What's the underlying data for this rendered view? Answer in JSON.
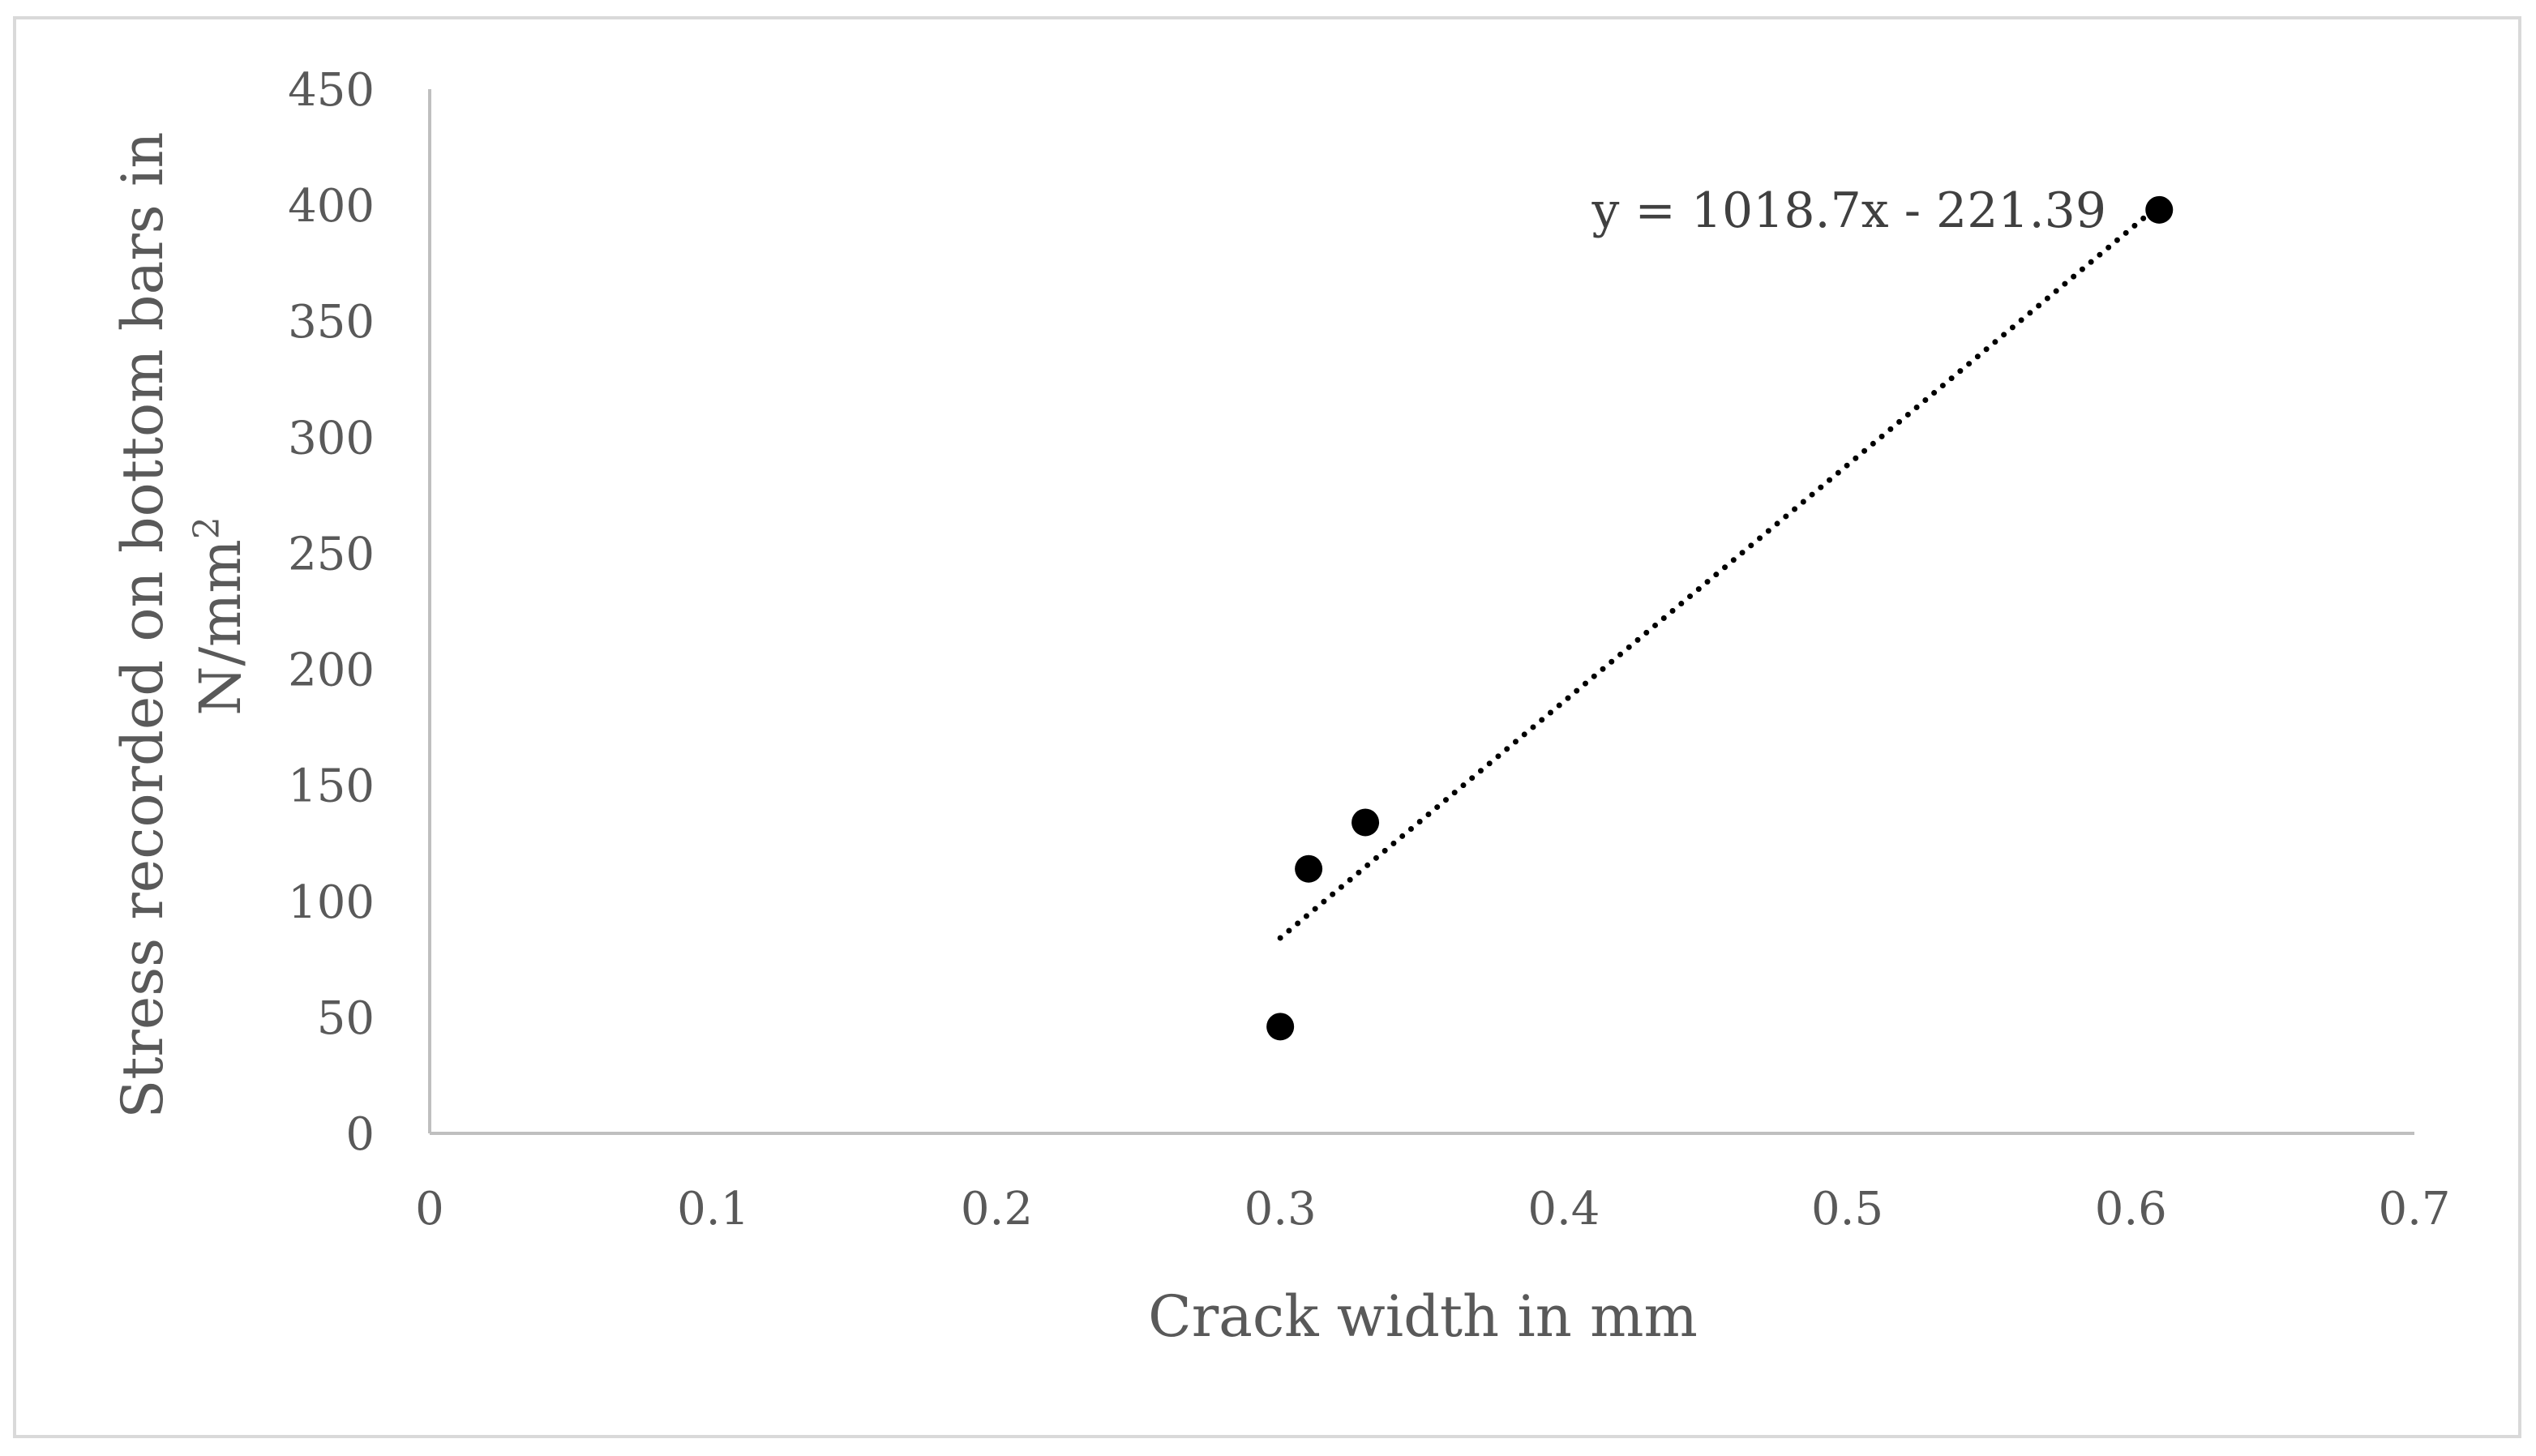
{
  "chart_data": {
    "type": "scatter",
    "title": "",
    "xlabel": "Crack width in mm",
    "ylabel_line1": "Stress recorded on bottom bars in",
    "ylabel_line2_base": "N/mm",
    "ylabel_line2_sup": "2",
    "xlim": [
      0,
      0.7
    ],
    "ylim": [
      0,
      450
    ],
    "x_ticks": [
      0,
      0.1,
      0.2,
      0.3,
      0.4,
      0.5,
      0.6,
      0.7
    ],
    "x_tick_labels": [
      "0",
      "0.1",
      "0.2",
      "0.3",
      "0.4",
      "0.5",
      "0.6",
      "0.7"
    ],
    "y_ticks": [
      0,
      50,
      100,
      150,
      200,
      250,
      300,
      350,
      400,
      450
    ],
    "y_tick_labels": [
      "0",
      "50",
      "100",
      "150",
      "200",
      "250",
      "300",
      "350",
      "400",
      "450"
    ],
    "grid": false,
    "legend": "none",
    "series": [
      {
        "x": [
          0.3,
          0.31,
          0.33,
          0.61
        ],
        "y": [
          46,
          114,
          134,
          398
        ],
        "color": "#000000"
      }
    ],
    "trendline": {
      "type": "linear",
      "slope": 1018.7,
      "intercept": -221.39,
      "x_range": [
        0.3,
        0.61
      ],
      "style": "dotted",
      "color": "#000000",
      "equation_label": "y = 1018.7x - 221.39"
    }
  }
}
